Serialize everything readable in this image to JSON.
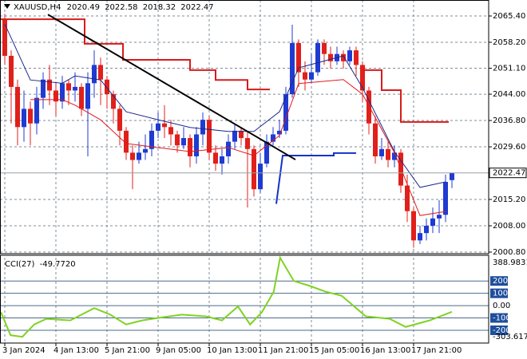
{
  "chart_data": {
    "type": "candlestick",
    "symbol": "XAUUSD,H4",
    "categories": [
      "3 Jan 2024",
      "4 Jan 13:00",
      "5 Jan 21:00",
      "9 Jan 05:00",
      "10 Jan 13:00",
      "11 Jan 21:00",
      "15 Jan 05:00",
      "16 Jan 13:00",
      "17 Jan 21:00"
    ],
    "xticks": [
      0,
      8,
      16,
      24,
      32,
      40,
      48,
      56,
      64
    ],
    "open": [
      2064.5,
      2054.5,
      2046,
      2035,
      2040,
      2036,
      2043,
      2048,
      2045,
      2042,
      2047,
      2045,
      2046,
      2040,
      2047,
      2052,
      2048,
      2044,
      2040,
      2034,
      2028,
      2026,
      2028,
      2029,
      2034,
      2036,
      2035,
      2033,
      2030,
      2032,
      2027,
      2033,
      2037,
      2028,
      2025,
      2027,
      2031,
      2034,
      2032,
      2029,
      2018,
      2025,
      2031,
      2033,
      2034,
      2044,
      2058,
      2050,
      2048,
      2050,
      2058,
      2055,
      2053,
      2055,
      2053,
      2056,
      2052,
      2045,
      2036,
      2027,
      2029,
      2026,
      2028,
      2019,
      2012,
      2004,
      2006,
      2008,
      2010,
      2011,
      2020.49
    ],
    "high": [
      2066,
      2056,
      2048,
      2045,
      2042,
      2046,
      2050,
      2052,
      2047,
      2049,
      2048,
      2050,
      2047,
      2050,
      2056,
      2054,
      2049,
      2045,
      2041,
      2035,
      2030,
      2031,
      2033,
      2036,
      2039,
      2041,
      2037,
      2034,
      2035,
      2033,
      2035,
      2039,
      2038,
      2030,
      2029,
      2033,
      2036,
      2035,
      2034,
      2030,
      2028,
      2033,
      2035,
      2037,
      2046,
      2063,
      2059,
      2053,
      2055,
      2059,
      2059,
      2057,
      2057,
      2056,
      2057,
      2057,
      2053,
      2046,
      2038,
      2032,
      2031,
      2030,
      2029,
      2022,
      2013,
      2008,
      2010,
      2013,
      2015,
      2022,
      2022.58
    ],
    "low": [
      2052,
      2036,
      2030,
      2031,
      2030,
      2033,
      2040,
      2041,
      2038,
      2040,
      2041,
      2042,
      2038,
      2027,
      2043,
      2041,
      2040,
      2036,
      2030,
      2026,
      2018,
      2025,
      2026,
      2027,
      2032,
      2032,
      2030,
      2028,
      2029,
      2024,
      2025,
      2030,
      2026,
      2023,
      2022,
      2025,
      2029,
      2030,
      2013,
      2016,
      2017,
      2024,
      2030,
      2032,
      2033,
      2043,
      2046,
      2045,
      2047,
      2049,
      2052,
      2051,
      2052,
      2051,
      2052,
      2049,
      2042,
      2033,
      2025,
      2026,
      2024,
      2024,
      2017,
      2009,
      2002,
      2003,
      2004,
      2006,
      2006,
      2009,
      2018.32
    ],
    "close": [
      2054.5,
      2046,
      2035,
      2040,
      2036,
      2043,
      2048,
      2045,
      2042,
      2047,
      2045,
      2046,
      2040,
      2047,
      2052,
      2048,
      2044,
      2040,
      2034,
      2028,
      2026,
      2028,
      2029,
      2034,
      2036,
      2035,
      2033,
      2030,
      2032,
      2027,
      2033,
      2037,
      2028,
      2025,
      2027,
      2031,
      2034,
      2032,
      2029,
      2018,
      2025,
      2031,
      2033,
      2034,
      2044,
      2058,
      2050,
      2048,
      2050,
      2058,
      2055,
      2053,
      2055,
      2053,
      2056,
      2052,
      2045,
      2036,
      2027,
      2029,
      2026,
      2028,
      2019,
      2012,
      2004,
      2006,
      2008,
      2010,
      2011,
      2020,
      2022.47
    ],
    "up_color": "#1f3bd1",
    "down_color": "#e0201b",
    "ylim": [
      2000.36,
      2069.77
    ],
    "yticks": [
      {
        "value": 2065.4,
        "label": "2065.40"
      },
      {
        "value": 2058.2,
        "label": "2058.20"
      },
      {
        "value": 2051.1,
        "label": "2051.10"
      },
      {
        "value": 2044,
        "label": "2044.00"
      },
      {
        "value": 2036.8,
        "label": "2036.80"
      },
      {
        "value": 2029.6,
        "label": "2029.60"
      },
      {
        "value": 2015.2,
        "label": "2015.20"
      },
      {
        "value": 2008,
        "label": "2008.00"
      },
      {
        "value": 2000.8,
        "label": "2000.80"
      }
    ],
    "last_price": 2022.47,
    "grid": true,
    "lines": [
      {
        "color": "#1c2a8c",
        "width": 1,
        "x": [
          0,
          4,
          9,
          11,
          15,
          19,
          24,
          29,
          35,
          39,
          43,
          46,
          53,
          56,
          61,
          65,
          69
        ],
        "values": [
          2063.2,
          2047.9,
          2047.0,
          2049.0,
          2047.9,
          2039.2,
          2037.0,
          2034.9,
          2033.8,
          2033.8,
          2039.2,
          2051.2,
          2054.5,
          2045.8,
          2028.3,
          2018.5,
          2020.0
        ]
      },
      {
        "color": "#e31a1c",
        "width": 1,
        "x": [
          0,
          4,
          9,
          11,
          15,
          19,
          24,
          29,
          35,
          39,
          43,
          46,
          53,
          56,
          61,
          65,
          69
        ],
        "values": [
          null,
          2042.5,
          2042.5,
          2041.0,
          2037.0,
          2030.5,
          2029.4,
          2028.3,
          2029.4,
          2027.2,
          2032.7,
          2046.9,
          2048.0,
          2044.0,
          2028.0,
          2010.8,
          2011.9
        ]
      },
      {
        "color": "#d81b1b",
        "width": 2,
        "x": [
          -1,
          12.5,
          12.5,
          18.5,
          18.5,
          29,
          29,
          33,
          33,
          38,
          38,
          41.5
        ],
        "values": [
          2064.5,
          2064.5,
          2057.8,
          2057.8,
          2053.4,
          2053.4,
          2050.6,
          2050.6,
          2047.9,
          2047.9,
          2045.3,
          2045.3
        ]
      },
      {
        "color": "#d81b1b",
        "width": 2,
        "x": [
          56,
          59,
          59,
          62,
          62,
          69.5
        ],
        "values": [
          2050.6,
          2050.6,
          2045.1,
          2045.1,
          2036.4,
          2036.4
        ]
      },
      {
        "color": "#1432c8",
        "width": 2,
        "x": [
          42.5,
          43.5,
          51.5,
          51.5,
          55
        ],
        "values": [
          2014.0,
          2027.2,
          2027.2,
          2027.9,
          2027.9
        ]
      },
      {
        "color": "#000000",
        "width": 2,
        "x": [
          6.75,
          45.5
        ],
        "values": [
          2065.8,
          2026.1
        ]
      }
    ],
    "cci": {
      "name": "CCI(27)",
      "color": "#7ed321",
      "x": [
        -0.6,
        0.9,
        2.75,
        4.6,
        6.5,
        10.25,
        14,
        16.5,
        19,
        21.5,
        24,
        27.75,
        31.5,
        34,
        36.5,
        38.4,
        40.25,
        42.1,
        43.1,
        45.25,
        47.75,
        50.25,
        52.75,
        56.5,
        60.25,
        62.75,
        66.5,
        70
      ],
      "values": [
        -53,
        -240,
        -253,
        -153,
        -107,
        -120,
        -20,
        -73,
        -153,
        -120,
        -100,
        -73,
        -87,
        -120,
        -7,
        -153,
        -53,
        113,
        388.9831,
        200,
        160,
        113,
        80,
        -87,
        -107,
        -173,
        -120,
        -49.772
      ],
      "value_labels": [
        null,
        null,
        null,
        null,
        null,
        null,
        null,
        null,
        null,
        null,
        null,
        null,
        null,
        null,
        null,
        null,
        null,
        null,
        null,
        null,
        null,
        null,
        null,
        null,
        null,
        null,
        null,
        "-49.7720"
      ],
      "ylim": [
        -303.6174,
        388.9831
      ],
      "yticks": [
        200,
        100,
        {
          "value": 0,
          "label": "0.00"
        },
        -100,
        -200
      ],
      "highlight_ticks": [
        200,
        100,
        -100,
        -200
      ]
    }
  }
}
